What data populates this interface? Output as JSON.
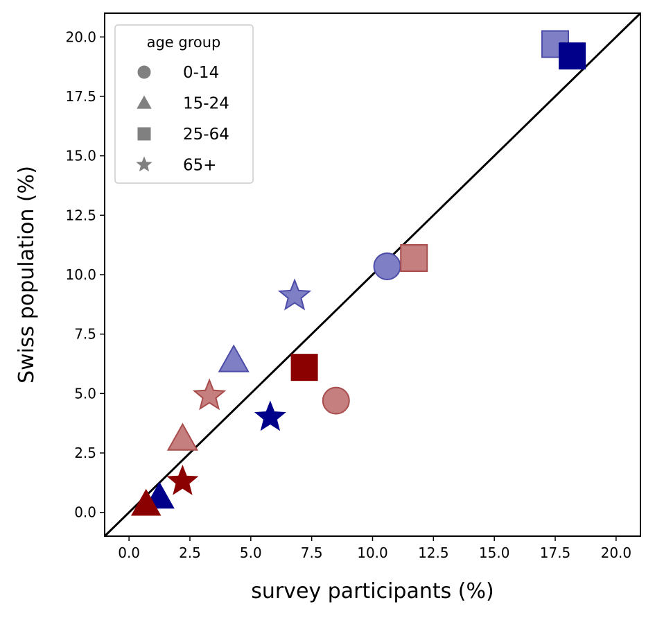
{
  "chart_data": {
    "type": "scatter",
    "xlabel": "survey participants (%)",
    "ylabel": "Swiss population (%)",
    "xlim": [
      -1.0,
      21.0
    ],
    "ylim": [
      -1.0,
      21.0
    ],
    "xticks": [
      "0.0",
      "2.5",
      "5.0",
      "7.5",
      "10.0",
      "12.5",
      "15.0",
      "17.5",
      "20.0"
    ],
    "yticks": [
      "0.0",
      "2.5",
      "5.0",
      "7.5",
      "10.0",
      "12.5",
      "15.0",
      "17.5",
      "20.0"
    ],
    "grid": false,
    "reference_line": {
      "type": "identity",
      "color": "#000000"
    },
    "legend": {
      "title": "age group",
      "placement": "top-left",
      "entries": [
        {
          "label": "0-14",
          "marker": "circle"
        },
        {
          "label": "15-24",
          "marker": "triangle"
        },
        {
          "label": "25-64",
          "marker": "square"
        },
        {
          "label": "65+",
          "marker": "star"
        }
      ]
    },
    "colors": {
      "dark_blue": "#00008b",
      "dark_red": "#8b0000",
      "light_blue_fill": "#7f7fc5",
      "light_blue_edge": "#4c4ca8",
      "light_red_fill": "#c57f7f",
      "light_red_edge": "#a84c4c",
      "legend_marker": "#808080"
    },
    "points": [
      {
        "marker": "circle",
        "x": 10.6,
        "y": 10.35,
        "style": "light_blue"
      },
      {
        "marker": "circle",
        "x": 8.5,
        "y": 4.7,
        "style": "light_red"
      },
      {
        "marker": "triangle",
        "x": 4.3,
        "y": 6.4,
        "style": "light_blue"
      },
      {
        "marker": "triangle",
        "x": 2.2,
        "y": 3.1,
        "style": "light_red"
      },
      {
        "marker": "triangle",
        "x": 1.25,
        "y": 0.65,
        "style": "dark_blue"
      },
      {
        "marker": "triangle",
        "x": 0.7,
        "y": 0.35,
        "style": "dark_red"
      },
      {
        "marker": "square",
        "x": 17.5,
        "y": 19.7,
        "style": "light_blue"
      },
      {
        "marker": "square",
        "x": 18.2,
        "y": 19.2,
        "style": "dark_blue"
      },
      {
        "marker": "square",
        "x": 11.7,
        "y": 10.7,
        "style": "light_red"
      },
      {
        "marker": "square",
        "x": 7.2,
        "y": 6.1,
        "style": "dark_red"
      },
      {
        "marker": "star",
        "x": 6.8,
        "y": 9.1,
        "style": "light_blue"
      },
      {
        "marker": "star",
        "x": 3.3,
        "y": 4.9,
        "style": "light_red"
      },
      {
        "marker": "star",
        "x": 5.8,
        "y": 4.0,
        "style": "dark_blue"
      },
      {
        "marker": "star",
        "x": 2.2,
        "y": 1.3,
        "style": "dark_red"
      }
    ]
  }
}
